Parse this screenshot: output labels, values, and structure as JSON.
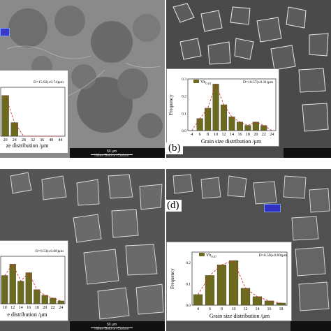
{
  "panels": {
    "a": {
      "letter": "",
      "d_label": "D=15.92(±0.74)μm",
      "xlabel": "ze distribution /μm",
      "scale_label": "50 μm",
      "scale_sub": "Hiltes Gold on Carbon",
      "chart_data": {
        "type": "bar",
        "categories": [
          "20",
          "24",
          "28",
          "32",
          "36",
          "40",
          "44"
        ],
        "values": [
          0.03,
          0.01,
          0.0,
          0.0,
          0.0,
          0.0,
          0.0
        ],
        "series_color": "#6b6a1f",
        "fit_color": "#d62020",
        "xlabel": "Grain size distribution /μm"
      }
    },
    "b": {
      "letter": "(b)",
      "d_label": "D=10.57(±0.31)μm",
      "legend": "Yb",
      "legend_sub": "0.01",
      "xlabel": "Grain size distribution /μm",
      "ylabel": "Frequency",
      "chart_data": {
        "type": "bar",
        "categories": [
          "4",
          "6",
          "8",
          "10",
          "12",
          "14",
          "16",
          "18",
          "20",
          "22",
          "24"
        ],
        "x_ticks": [
          "4",
          "6",
          "8",
          "10",
          "12",
          "14",
          "16",
          "18",
          "20",
          "22",
          "24"
        ],
        "values": [
          0.0,
          0.07,
          0.13,
          0.27,
          0.15,
          0.08,
          0.05,
          0.03,
          0.05,
          0.03,
          0.0
        ],
        "yticks": [
          "0.0",
          "0.1",
          "0.2",
          "0.3"
        ],
        "ylim": [
          0,
          0.3
        ],
        "series_color": "#6b6a1f",
        "fit_color": "#d62020"
      }
    },
    "c": {
      "d_label": "D=9.53(±0.68)μm",
      "xlabel": "e distribution /μm",
      "scale_label": "50 μm",
      "scale_sub": "Hiltes Gold on Carbon",
      "chart_data": {
        "type": "bar",
        "categories": [
          "10",
          "12",
          "14",
          "16",
          "18",
          "20",
          "22",
          "24"
        ],
        "values": [
          0.1,
          0.14,
          0.08,
          0.11,
          0.05,
          0.03,
          0.02,
          0.01
        ],
        "series_color": "#6b6a1f",
        "fit_color": "#d62020"
      }
    },
    "d": {
      "letter": "(d)",
      "d_label": "D=8.59(±0.60)μm",
      "legend": "Yb",
      "legend_sub": "0.07",
      "xlabel": "Grain size distribution /μm",
      "ylabel": "Frequency",
      "chart_data": {
        "type": "bar",
        "categories": [
          "4",
          "6",
          "8",
          "10",
          "12",
          "14",
          "16",
          "18"
        ],
        "values": [
          0.05,
          0.14,
          0.19,
          0.21,
          0.08,
          0.04,
          0.02,
          0.01
        ],
        "yticks": [
          "0.0",
          "0.1",
          "0.2"
        ],
        "ylim": [
          0,
          0.25
        ],
        "series_color": "#6b6a1f",
        "fit_color": "#d62020"
      }
    }
  }
}
